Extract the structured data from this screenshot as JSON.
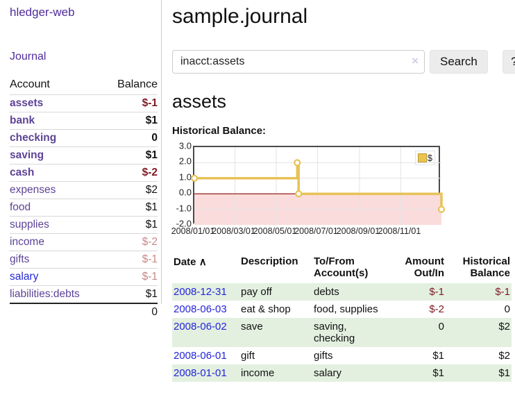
{
  "sidebar": {
    "brand": "hledger-web",
    "journal_link": "Journal",
    "accounts_table": {
      "header_account": "Account",
      "header_balance": "Balance",
      "rows": [
        {
          "name": "assets",
          "balance": "$-1"
        },
        {
          "name": "bank",
          "balance": "$1"
        },
        {
          "name": "checking",
          "balance": "0"
        },
        {
          "name": "saving",
          "balance": "$1"
        },
        {
          "name": "cash",
          "balance": "$-2"
        },
        {
          "name": "expenses",
          "balance": "$2"
        },
        {
          "name": "food",
          "balance": "$1"
        },
        {
          "name": "supplies",
          "balance": "$1"
        },
        {
          "name": "income",
          "balance": "$-2"
        },
        {
          "name": "gifts",
          "balance": "$-1"
        },
        {
          "name": "salary",
          "balance": "$-1"
        },
        {
          "name": "liabilities:debts",
          "balance": "$1"
        }
      ],
      "total": "0"
    }
  },
  "header": {
    "title": "sample.journal"
  },
  "search": {
    "value": "inacct:assets",
    "clear_icon": "×",
    "search_button": "Search",
    "help_button": "?"
  },
  "account_page": {
    "title": "assets",
    "chart_label": "Historical Balance:"
  },
  "chart_data": {
    "type": "line",
    "step": true,
    "title": "Historical Balance",
    "series": [
      {
        "name": "$",
        "points": [
          [
            "2008-01-01",
            1
          ],
          [
            "2008-06-01",
            2
          ],
          [
            "2008-06-03",
            0
          ],
          [
            "2008-12-31",
            -1
          ]
        ]
      }
    ],
    "x_range": [
      "2008-01-01",
      "2008-12-31"
    ],
    "x_tick_labels": [
      "2008/01/01",
      "2008/03/01",
      "2008/05/01",
      "2008/07/01",
      "2008/09/01",
      "2008/11/01"
    ],
    "y_ticks": [
      3.0,
      2.0,
      1.0,
      0.0,
      -1.0,
      -2.0
    ],
    "ylim": [
      -2,
      3
    ],
    "grid": true,
    "legend_position": "top-right",
    "colors": {
      "line": "#e7c257",
      "marker_fill": "#ffffff",
      "negative_region": "#fadcdc",
      "zero_line": "#8b0000",
      "gridline": "#e3e3e3",
      "border": "#4a4a4a"
    }
  },
  "register_table": {
    "headers": {
      "date": "Date",
      "sort_icon": "∧",
      "description": "Description",
      "accounts": "To/From Account(s)",
      "amount": "Amount Out/In",
      "balance": "Historical Balance"
    },
    "rows": [
      {
        "date": "2008-12-31",
        "description": "pay off",
        "accounts": "debts",
        "amount": "$-1",
        "balance": "$-1"
      },
      {
        "date": "2008-06-03",
        "description": "eat & shop",
        "accounts": "food, supplies",
        "amount": "$-2",
        "balance": "0"
      },
      {
        "date": "2008-06-02",
        "description": "save",
        "accounts": "saving, checking",
        "amount": "0",
        "balance": "$2"
      },
      {
        "date": "2008-06-01",
        "description": "gift",
        "accounts": "gifts",
        "amount": "$1",
        "balance": "$2"
      },
      {
        "date": "2008-01-01",
        "description": "income",
        "accounts": "salary",
        "amount": "$1",
        "balance": "$1"
      }
    ]
  },
  "colors": {
    "link_purple": "#4f2b9b",
    "account_purple": "#5d4397",
    "link_blue": "#2323dc",
    "negative_strong": "#7f1a22",
    "negative_soft": "#c98888",
    "row_green": "#e3f0e0"
  }
}
